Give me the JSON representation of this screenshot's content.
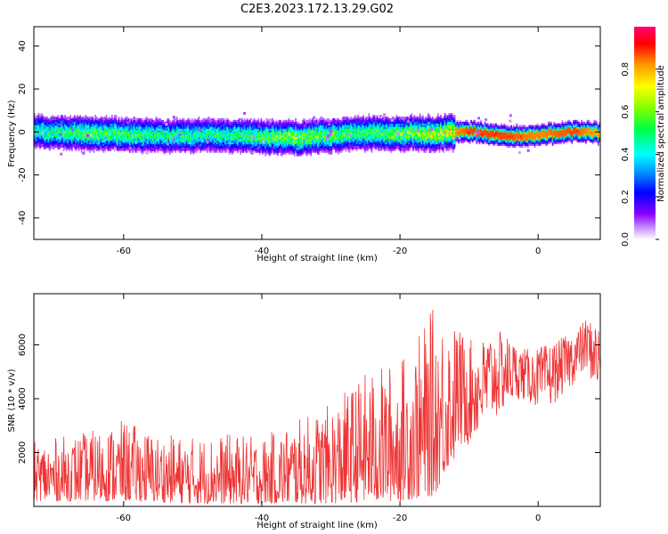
{
  "title": "C2E3.2023.172.13.29.G02",
  "colorbar": {
    "label": "Normalized spectral amplitude",
    "ticks": [
      "0.0",
      "0.2",
      "0.4",
      "0.6",
      "0.8"
    ],
    "tick_values": [
      0.0,
      0.2,
      0.4,
      0.6,
      0.8
    ]
  },
  "chart_data": [
    {
      "type": "heatmap",
      "xlabel": "Height of straight line (km)",
      "ylabel": "Frequency (Hz)",
      "xlim": [
        -73,
        9
      ],
      "ylim": [
        -50,
        49
      ],
      "x_ticks": [
        -60,
        -40,
        -20,
        0
      ],
      "x_tick_labels": [
        "-60",
        "-40",
        "-20",
        "0"
      ],
      "y_ticks": [
        40,
        20,
        0,
        -20,
        -40
      ],
      "y_tick_labels": [
        "40",
        "20",
        "0",
        "-20",
        "-40"
      ],
      "ridge": {
        "x": [
          -73,
          -65,
          -55,
          -45,
          -35,
          -25,
          -15,
          -10,
          -5,
          0,
          5,
          9
        ],
        "frequency": [
          0,
          -1,
          -2,
          -2,
          -3,
          -1,
          -1,
          0,
          -2,
          -2,
          0,
          -1
        ],
        "peak_amplitude": [
          0.55,
          0.7,
          0.6,
          0.6,
          0.75,
          0.65,
          0.8,
          0.95,
          0.95,
          0.9,
          0.95,
          0.85
        ]
      }
    },
    {
      "type": "line",
      "xlabel": "Height of straight line (km)",
      "ylabel": "SNR (10 * v/v)",
      "xlim": [
        -73,
        9
      ],
      "ylim": [
        0,
        7900
      ],
      "x_ticks": [
        -60,
        -40,
        -20,
        0
      ],
      "x_tick_labels": [
        "-60",
        "-40",
        "-20",
        "0"
      ],
      "y_ticks": [
        2000,
        4000,
        6000
      ],
      "y_tick_labels": [
        "2000",
        "4000",
        "6000"
      ],
      "color": "#ee3333",
      "envelope": {
        "x": [
          -73,
          -65,
          -60,
          -55,
          -50,
          -45,
          -40,
          -35,
          -30,
          -25,
          -20,
          -17,
          -15,
          -13,
          -11,
          -9,
          -7,
          -5,
          -3,
          -1,
          1,
          3,
          5,
          7,
          9
        ],
        "low": [
          200,
          200,
          200,
          150,
          100,
          100,
          100,
          100,
          100,
          150,
          200,
          300,
          400,
          1500,
          2000,
          2500,
          3000,
          3500,
          4000,
          3800,
          3500,
          4000,
          4500,
          5000,
          4000
        ],
        "high": [
          2400,
          2800,
          3200,
          2700,
          2600,
          2700,
          2600,
          3200,
          3800,
          5000,
          5500,
          6500,
          7500,
          7200,
          6500,
          6000,
          6500,
          6500,
          6000,
          5800,
          6000,
          6200,
          6500,
          7000,
          6800
        ]
      }
    }
  ]
}
